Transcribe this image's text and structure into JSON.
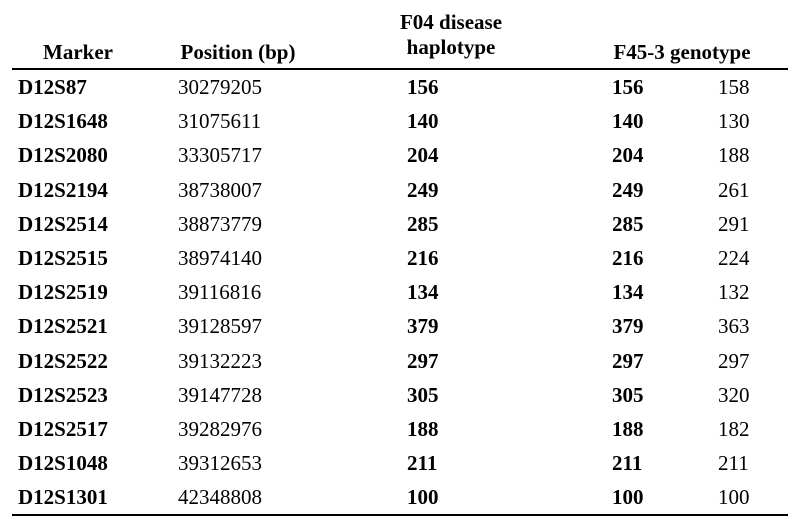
{
  "table": {
    "headers": {
      "marker": "Marker",
      "position": "Position (bp)",
      "f04_line1": "F04 disease",
      "f04_line2": "haplotype",
      "f45": "F45-3 genotype"
    },
    "rows": [
      {
        "marker": "D12S87",
        "position": "30279205",
        "f04": "156",
        "g1": "156",
        "g2": "158"
      },
      {
        "marker": "D12S1648",
        "position": "31075611",
        "f04": "140",
        "g1": "140",
        "g2": "130"
      },
      {
        "marker": "D12S2080",
        "position": "33305717",
        "f04": "204",
        "g1": "204",
        "g2": "188"
      },
      {
        "marker": "D12S2194",
        "position": "38738007",
        "f04": "249",
        "g1": "249",
        "g2": "261"
      },
      {
        "marker": "D12S2514",
        "position": "38873779",
        "f04": "285",
        "g1": "285",
        "g2": "291"
      },
      {
        "marker": "D12S2515",
        "position": "38974140",
        "f04": "216",
        "g1": "216",
        "g2": "224"
      },
      {
        "marker": "D12S2519",
        "position": "39116816",
        "f04": "134",
        "g1": "134",
        "g2": "132"
      },
      {
        "marker": "D12S2521",
        "position": "39128597",
        "f04": "379",
        "g1": "379",
        "g2": "363"
      },
      {
        "marker": "D12S2522",
        "position": "39132223",
        "f04": "297",
        "g1": "297",
        "g2": "297"
      },
      {
        "marker": "D12S2523",
        "position": "39147728",
        "f04": "305",
        "g1": "305",
        "g2": "320"
      },
      {
        "marker": "D12S2517",
        "position": "39282976",
        "f04": "188",
        "g1": "188",
        "g2": "182"
      },
      {
        "marker": "D12S1048",
        "position": "39312653",
        "f04": "211",
        "g1": "211",
        "g2": "211"
      },
      {
        "marker": "D12S1301",
        "position": "42348808",
        "f04": "100",
        "g1": "100",
        "g2": "100"
      }
    ]
  }
}
